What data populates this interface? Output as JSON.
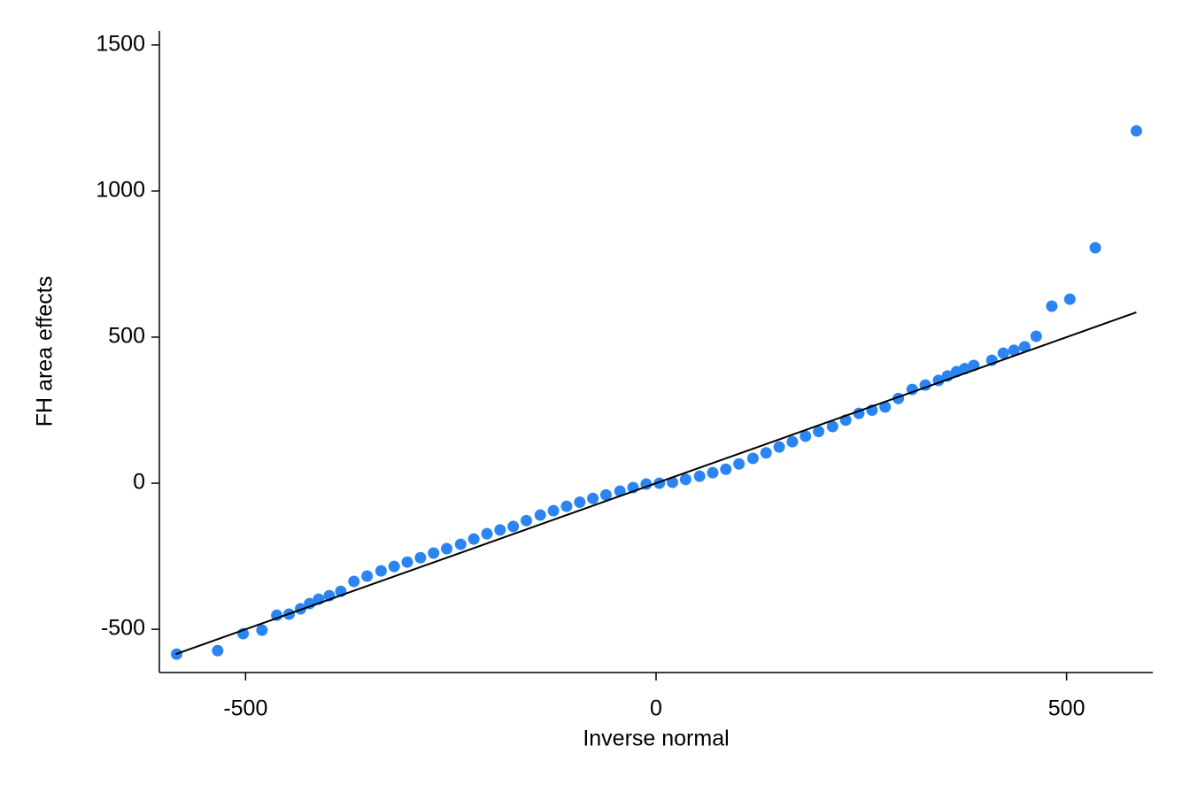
{
  "chart_data": {
    "type": "scatter",
    "xlabel": "Inverse normal",
    "ylabel": "FH area effects",
    "xlim": [
      -605,
      605
    ],
    "ylim": [
      -648,
      1548
    ],
    "xticks": [
      -500,
      0,
      500
    ],
    "yticks": [
      -500,
      0,
      500,
      1000,
      1500
    ],
    "grid": false,
    "series": [
      {
        "type": "scatter",
        "color": "#2a85f2",
        "x": [
          -584,
          -534,
          -503,
          -480,
          -462,
          -447,
          -433,
          -422,
          -411,
          -398,
          -384,
          -368,
          -352,
          -335,
          -319,
          -303,
          -287,
          -271,
          -255,
          -238,
          -222,
          -206,
          -190,
          -174,
          -158,
          -141,
          -125,
          -109,
          -93,
          -77,
          -61,
          -44,
          -28,
          -12,
          4,
          20,
          36,
          53,
          69,
          85,
          101,
          118,
          134,
          150,
          166,
          182,
          198,
          215,
          231,
          247,
          263,
          279,
          295,
          312,
          328,
          344,
          355,
          366,
          376,
          387,
          409,
          423,
          436,
          449,
          463,
          482,
          504,
          535,
          585
        ],
        "values": [
          -585,
          -573,
          -515,
          -503,
          -452,
          -448,
          -430,
          -412,
          -397,
          -385,
          -370,
          -336,
          -318,
          -300,
          -285,
          -270,
          -255,
          -239,
          -224,
          -209,
          -191,
          -173,
          -160,
          -148,
          -128,
          -109,
          -94,
          -79,
          -65,
          -52,
          -40,
          -27,
          -15,
          -3,
          0,
          3,
          13,
          24,
          36,
          48,
          66,
          85,
          104,
          124,
          142,
          161,
          177,
          194,
          216,
          239,
          250,
          261,
          290,
          321,
          336,
          352,
          367,
          382,
          392,
          403,
          421,
          445,
          455,
          467,
          503,
          606,
          630,
          806,
          1206
        ]
      },
      {
        "type": "line",
        "color": "#000000",
        "x": [
          -585,
          585
        ],
        "values": [
          -585,
          585
        ]
      }
    ]
  }
}
